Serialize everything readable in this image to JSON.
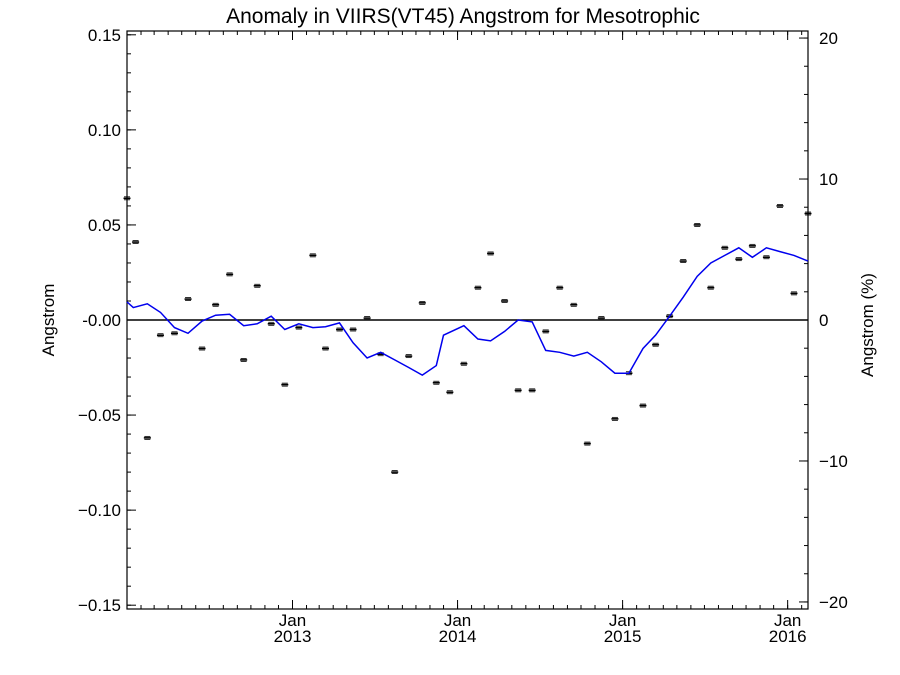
{
  "chart_data": {
    "type": "scatter",
    "title": "Anomaly in VIIRS(VT45) Angstrom for Mesotrophic",
    "ylabel": "Angstrom",
    "y2label": "Angstrom (%)",
    "xlim": [
      "2012-01-01",
      "2016-02-15"
    ],
    "ylim": [
      -0.152,
      0.152
    ],
    "y2lim": [
      -20.5,
      20.5
    ],
    "yticks": [
      0.15,
      0.1,
      0.05,
      0.0,
      -0.05,
      -0.1,
      -0.15
    ],
    "yticklabels": [
      "0.15",
      "0.10",
      "0.05",
      "-0.00",
      "−0.05",
      "−0.10",
      "−0.15"
    ],
    "y2ticks": [
      20,
      10,
      0,
      -10,
      -20
    ],
    "y2ticklabels": [
      "20",
      "10",
      "0",
      "−10",
      "−20"
    ],
    "xticks": [
      {
        "date": "2013-01-01",
        "month": "Jan",
        "year": "2013"
      },
      {
        "date": "2014-01-01",
        "month": "Jan",
        "year": "2014"
      },
      {
        "date": "2015-01-01",
        "month": "Jan",
        "year": "2015"
      },
      {
        "date": "2016-01-01",
        "month": "Jan",
        "year": "2016"
      }
    ],
    "zero_line": 0,
    "series": [
      {
        "style": "points-with-error-bars",
        "color": "#000000",
        "points": [
          {
            "x": "2012-01-01",
            "y": 0.064
          },
          {
            "x": "2012-01-20",
            "y": 0.041
          },
          {
            "x": "2012-02-15",
            "y": -0.062
          },
          {
            "x": "2012-03-15",
            "y": -0.008
          },
          {
            "x": "2012-04-15",
            "y": -0.007
          },
          {
            "x": "2012-05-15",
            "y": 0.011
          },
          {
            "x": "2012-06-15",
            "y": -0.015
          },
          {
            "x": "2012-07-15",
            "y": 0.008
          },
          {
            "x": "2012-08-15",
            "y": 0.024
          },
          {
            "x": "2012-09-15",
            "y": -0.021
          },
          {
            "x": "2012-10-15",
            "y": 0.018
          },
          {
            "x": "2012-11-15",
            "y": -0.002
          },
          {
            "x": "2012-12-15",
            "y": -0.034
          },
          {
            "x": "2013-01-15",
            "y": -0.004
          },
          {
            "x": "2013-02-15",
            "y": 0.034
          },
          {
            "x": "2013-03-15",
            "y": -0.015
          },
          {
            "x": "2013-04-15",
            "y": -0.005
          },
          {
            "x": "2013-05-15",
            "y": -0.005
          },
          {
            "x": "2013-06-15",
            "y": 0.001
          },
          {
            "x": "2013-07-15",
            "y": -0.018
          },
          {
            "x": "2013-08-15",
            "y": -0.08
          },
          {
            "x": "2013-09-15",
            "y": -0.019
          },
          {
            "x": "2013-10-15",
            "y": 0.009
          },
          {
            "x": "2013-11-15",
            "y": -0.033
          },
          {
            "x": "2013-12-15",
            "y": -0.038
          },
          {
            "x": "2014-01-15",
            "y": -0.023
          },
          {
            "x": "2014-02-15",
            "y": 0.017
          },
          {
            "x": "2014-03-15",
            "y": 0.035
          },
          {
            "x": "2014-04-15",
            "y": 0.01
          },
          {
            "x": "2014-05-15",
            "y": -0.037
          },
          {
            "x": "2014-06-15",
            "y": -0.037
          },
          {
            "x": "2014-07-15",
            "y": -0.006
          },
          {
            "x": "2014-08-15",
            "y": 0.017
          },
          {
            "x": "2014-09-15",
            "y": 0.008
          },
          {
            "x": "2014-10-15",
            "y": -0.065
          },
          {
            "x": "2014-11-15",
            "y": 0.001
          },
          {
            "x": "2014-12-15",
            "y": -0.052
          },
          {
            "x": "2015-01-15",
            "y": -0.028
          },
          {
            "x": "2015-02-15",
            "y": -0.045
          },
          {
            "x": "2015-03-15",
            "y": -0.013
          },
          {
            "x": "2015-04-15",
            "y": 0.002
          },
          {
            "x": "2015-05-15",
            "y": 0.031
          },
          {
            "x": "2015-06-15",
            "y": 0.05
          },
          {
            "x": "2015-07-15",
            "y": 0.017
          },
          {
            "x": "2015-08-15",
            "y": 0.038
          },
          {
            "x": "2015-09-15",
            "y": 0.032
          },
          {
            "x": "2015-10-15",
            "y": 0.039
          },
          {
            "x": "2015-11-15",
            "y": 0.033
          },
          {
            "x": "2015-12-15",
            "y": 0.06
          },
          {
            "x": "2016-01-15",
            "y": 0.014
          },
          {
            "x": "2016-02-15",
            "y": 0.056
          }
        ]
      },
      {
        "style": "line",
        "color": "#0000ee",
        "points": [
          {
            "x": "2012-01-01",
            "y": 0.0095
          },
          {
            "x": "2012-01-15",
            "y": 0.0065
          },
          {
            "x": "2012-02-15",
            "y": 0.0085
          },
          {
            "x": "2012-03-15",
            "y": 0.004
          },
          {
            "x": "2012-04-15",
            "y": -0.004
          },
          {
            "x": "2012-05-15",
            "y": -0.007
          },
          {
            "x": "2012-06-15",
            "y": -0.0005
          },
          {
            "x": "2012-07-15",
            "y": 0.0025
          },
          {
            "x": "2012-08-15",
            "y": 0.003
          },
          {
            "x": "2012-09-15",
            "y": -0.003
          },
          {
            "x": "2012-10-15",
            "y": -0.002
          },
          {
            "x": "2012-11-15",
            "y": 0.002
          },
          {
            "x": "2012-12-15",
            "y": -0.005
          },
          {
            "x": "2013-01-15",
            "y": -0.002
          },
          {
            "x": "2013-02-15",
            "y": -0.004
          },
          {
            "x": "2013-03-15",
            "y": -0.0035
          },
          {
            "x": "2013-04-15",
            "y": -0.0015
          },
          {
            "x": "2013-05-15",
            "y": -0.012
          },
          {
            "x": "2013-06-15",
            "y": -0.02
          },
          {
            "x": "2013-07-15",
            "y": -0.017
          },
          {
            "x": "2013-08-15",
            "y": -0.021
          },
          {
            "x": "2013-09-15",
            "y": -0.025
          },
          {
            "x": "2013-10-15",
            "y": -0.029
          },
          {
            "x": "2013-11-15",
            "y": -0.024
          },
          {
            "x": "2013-12-01",
            "y": -0.008
          },
          {
            "x": "2014-01-15",
            "y": -0.003
          },
          {
            "x": "2014-02-15",
            "y": -0.01
          },
          {
            "x": "2014-03-15",
            "y": -0.011
          },
          {
            "x": "2014-04-15",
            "y": -0.006
          },
          {
            "x": "2014-05-15",
            "y": 0.0
          },
          {
            "x": "2014-06-15",
            "y": -0.001
          },
          {
            "x": "2014-07-15",
            "y": -0.016
          },
          {
            "x": "2014-08-15",
            "y": -0.017
          },
          {
            "x": "2014-09-15",
            "y": -0.019
          },
          {
            "x": "2014-10-15",
            "y": -0.017
          },
          {
            "x": "2014-11-15",
            "y": -0.022
          },
          {
            "x": "2014-12-15",
            "y": -0.028
          },
          {
            "x": "2015-01-15",
            "y": -0.028
          },
          {
            "x": "2015-02-15",
            "y": -0.015
          },
          {
            "x": "2015-03-15",
            "y": -0.008
          },
          {
            "x": "2015-04-15",
            "y": 0.002
          },
          {
            "x": "2015-05-15",
            "y": 0.012
          },
          {
            "x": "2015-06-15",
            "y": 0.023
          },
          {
            "x": "2015-07-15",
            "y": 0.03
          },
          {
            "x": "2015-08-15",
            "y": 0.034
          },
          {
            "x": "2015-09-15",
            "y": 0.038
          },
          {
            "x": "2015-10-15",
            "y": 0.033
          },
          {
            "x": "2015-11-15",
            "y": 0.038
          },
          {
            "x": "2015-12-15",
            "y": 0.036
          },
          {
            "x": "2016-01-15",
            "y": 0.034
          },
          {
            "x": "2016-02-15",
            "y": 0.031
          }
        ]
      }
    ]
  }
}
